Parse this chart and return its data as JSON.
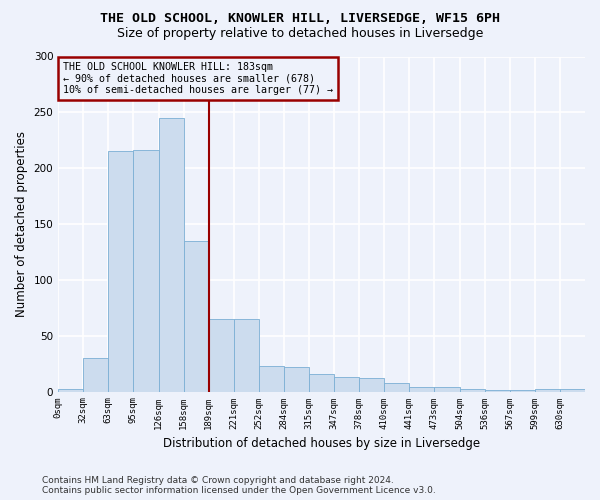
{
  "title": "THE OLD SCHOOL, KNOWLER HILL, LIVERSEDGE, WF15 6PH",
  "subtitle": "Size of property relative to detached houses in Liversedge",
  "xlabel": "Distribution of detached houses by size in Liversedge",
  "ylabel": "Number of detached properties",
  "bar_values": [
    2,
    30,
    215,
    216,
    245,
    135,
    65,
    65,
    23,
    22,
    16,
    13,
    12,
    8,
    4,
    4,
    2,
    1,
    1,
    2,
    2
  ],
  "tick_labels": [
    "0sqm",
    "32sqm",
    "63sqm",
    "95sqm",
    "126sqm",
    "158sqm",
    "189sqm",
    "221sqm",
    "252sqm",
    "284sqm",
    "315sqm",
    "347sqm",
    "378sqm",
    "410sqm",
    "441sqm",
    "473sqm",
    "504sqm",
    "536sqm",
    "567sqm",
    "599sqm",
    "630sqm"
  ],
  "bar_color": "#ccdcee",
  "bar_edgecolor": "#7bafd4",
  "vline_x_index": 6,
  "vline_color": "#990000",
  "annotation_box_text": "THE OLD SCHOOL KNOWLER HILL: 183sqm\n← 90% of detached houses are smaller (678)\n10% of semi-detached houses are larger (77) →",
  "annotation_box_edgecolor": "#990000",
  "background_color": "#eef2fb",
  "grid_color": "#ffffff",
  "footer": "Contains HM Land Registry data © Crown copyright and database right 2024.\nContains public sector information licensed under the Open Government Licence v3.0.",
  "ylim": [
    0,
    300
  ],
  "yticks": [
    0,
    50,
    100,
    150,
    200,
    250,
    300
  ],
  "title_fontsize": 9.5,
  "subtitle_fontsize": 9,
  "ylabel_fontsize": 8.5,
  "xlabel_fontsize": 8.5,
  "tick_fontsize": 6.5,
  "annotation_fontsize": 7.2,
  "footer_fontsize": 6.5
}
